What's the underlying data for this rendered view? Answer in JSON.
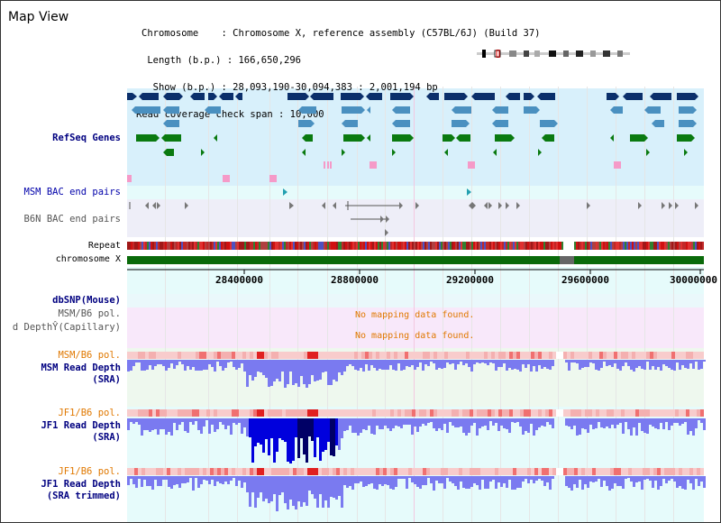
{
  "header": {
    "title": "Map View",
    "info_lines": [
      "Chromosome    : Chromosome X, reference assembly (C57BL/6J) (Build 37)",
      " Length (b.p.) : 166,650,296",
      "  Show (b.p.) : 28,093,190-30,094,383 : 2,001,194 bp",
      "Read coverage check span : 10,000"
    ]
  },
  "tracks": {
    "refseq": "RefSeq Genes",
    "msm_bac": "MSM BAC end pairs",
    "b6n_bac": "B6N BAC end pairs",
    "repeat": "Repeat",
    "chromosome": "chromosome X",
    "dbsnp": "dbSNP(Mouse)",
    "msm_b6_pol_cap": "MSM/B6 pol.",
    "read_depth_cap": "d DepthŶ(Capillary)",
    "msm_b6_pol": "MSM/B6 pol.",
    "msm_read_depth_1": "MSM Read Depth",
    "msm_read_depth_2": "(SRA)",
    "jf1_b6_pol": "JF1/B6 pol.",
    "jf1_read_depth_1": "JF1 Read Depth",
    "jf1_read_depth_2": "(SRA)",
    "jf1_b6_pol_2": "JF1/B6 pol.",
    "jf1_trim_1": "JF1 Read Depth",
    "jf1_trim_2": "(SRA trimmed)"
  },
  "messages": {
    "no_data_1": "No mapping data found.",
    "no_data_2": "No mapping data found."
  },
  "axis": {
    "ticks": [
      "28400000",
      "28800000",
      "29200000",
      "29600000",
      "30000000"
    ]
  },
  "colors": {
    "refseq_dark": "#0b2f6b",
    "refseq_mid": "#4a90c0",
    "refseq_green": "#0a7a10",
    "pink": "#f59ac8",
    "chrom": "#0a6a0a",
    "depth": "#5555ee",
    "depth_dark": "#0000cc",
    "pol": "#f0a0a0"
  }
}
